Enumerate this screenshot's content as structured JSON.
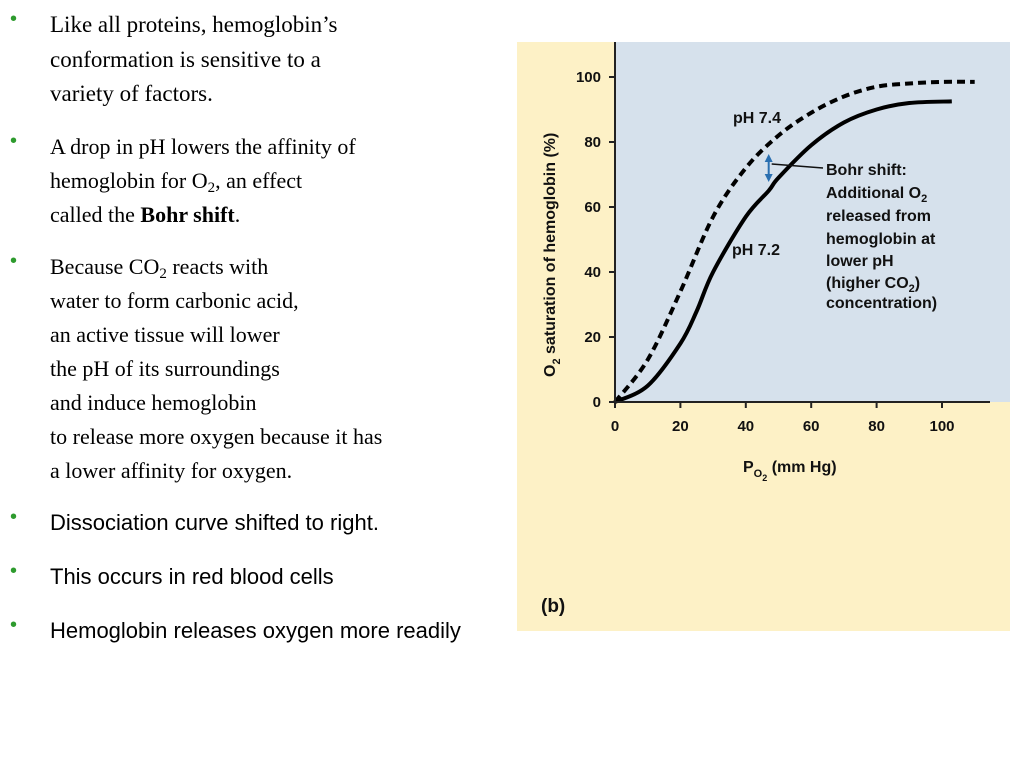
{
  "bullets": [
    {
      "style": "serif",
      "lines": [
        "Like all proteins, hemoglobin’s",
        "conformation is sensitive to a",
        "variety of factors."
      ]
    },
    {
      "style": "serif2",
      "line1": "A drop in pH lowers the affinity of",
      "line2_pre": "hemoglobin for O",
      "line2_sub": "2",
      "line2_post": ", an effect",
      "line3_pre": "called the ",
      "line3_bold": "Bohr shift",
      "line3_post": "."
    },
    {
      "style": "serif2",
      "line1_pre": "Because CO",
      "line1_sub": "2",
      "line1_post": " reacts with",
      "lines": [
        "water to form carbonic acid,",
        "an active tissue will lower",
        "the pH of its surroundings",
        "and induce hemoglobin",
        "to release more oxygen because it has",
        "a lower affinity for oxygen."
      ]
    },
    {
      "style": "sans",
      "text": "Dissociation curve shifted to right."
    },
    {
      "style": "sans",
      "text": "This occurs in red blood cells"
    },
    {
      "style": "sans",
      "text": "Hemoglobin releases oxygen more readily"
    }
  ],
  "bullet_symbol": "•",
  "figure": {
    "panel_label": "(b)",
    "bohr_lines": [
      "Bohr shift:",
      "Additional O",
      "released from",
      "hemoglobin at",
      "lower pH",
      "(higher CO",
      "concentration)"
    ],
    "sub2": "2",
    "colors": {
      "plot_bg": "#d6e1ec",
      "panel_bg": "#fdf1c6",
      "arrow": "#2a6fb0",
      "curve": "#000000"
    }
  },
  "chart_data": {
    "type": "line",
    "xlabel_main": "P",
    "xlabel_sub": "O",
    "xlabel_subsub": "2",
    "xlabel_rest": " (mm Hg)",
    "ylabel_main": "O",
    "ylabel_sub": "2",
    "ylabel_rest": " saturation of hemoglobin (%)",
    "xlim": [
      0,
      115
    ],
    "ylim": [
      0,
      110
    ],
    "xticks": [
      0,
      20,
      40,
      60,
      80,
      100
    ],
    "yticks": [
      0,
      20,
      40,
      60,
      80,
      100
    ],
    "grid": false,
    "series": [
      {
        "name": "pH 7.4",
        "style": "dashed",
        "x": [
          0,
          10,
          20,
          30,
          40,
          50,
          60,
          70,
          80,
          90,
          100,
          110
        ],
        "values": [
          0,
          13,
          34,
          57,
          72,
          82,
          89,
          94,
          97,
          98,
          98.5,
          98.5
        ]
      },
      {
        "name": "pH 7.2",
        "style": "solid",
        "x": [
          0,
          10,
          20,
          25,
          30,
          40,
          47,
          50,
          60,
          70,
          80,
          90,
          103
        ],
        "values": [
          0,
          5,
          18,
          28,
          40,
          57,
          65,
          69,
          79,
          86,
          90,
          92,
          92.5
        ]
      }
    ],
    "bohr_arrow": {
      "x": 47,
      "y_from": 76,
      "y_to": 68
    }
  }
}
